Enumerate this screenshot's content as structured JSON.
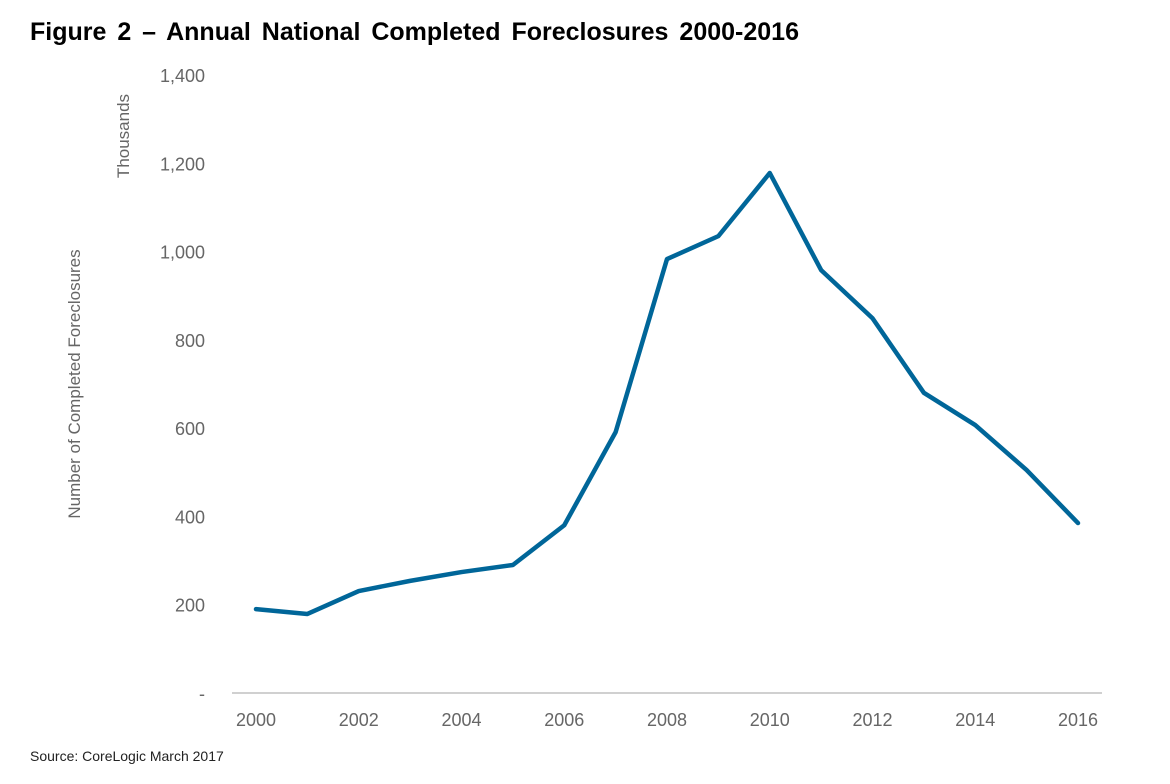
{
  "chart_data": {
    "type": "line",
    "title": "Figure 2 – Annual National Completed Foreclosures 2000-2016",
    "ylabel": "Number of Completed Foreclosures",
    "yunit_label": "Thousands",
    "xlabel": "",
    "source": "Source: CoreLogic March 2017",
    "ylim": [
      0,
      1400
    ],
    "yticks": [
      0,
      200,
      400,
      600,
      800,
      1000,
      1200,
      1400
    ],
    "ytick_labels": [
      "-",
      "200",
      "400",
      "600",
      "800",
      "1,000",
      "1,200",
      "1,400"
    ],
    "xlim": [
      2000,
      2016
    ],
    "xtick_labels": [
      "2000",
      "2002",
      "2004",
      "2006",
      "2008",
      "2010",
      "2012",
      "2014",
      "2016"
    ],
    "grid": false,
    "legend": "none",
    "series": [
      {
        "name": "Completed Foreclosures",
        "color": "#006699",
        "x": [
          2000,
          2001,
          2002,
          2003,
          2004,
          2005,
          2006,
          2007,
          2008,
          2009,
          2010,
          2011,
          2012,
          2013,
          2014,
          2015,
          2016
        ],
        "values": [
          190,
          179,
          231,
          254,
          274,
          290,
          380,
          591,
          983,
          1035,
          1178,
          958,
          849,
          680,
          607,
          505,
          385
        ]
      }
    ]
  }
}
